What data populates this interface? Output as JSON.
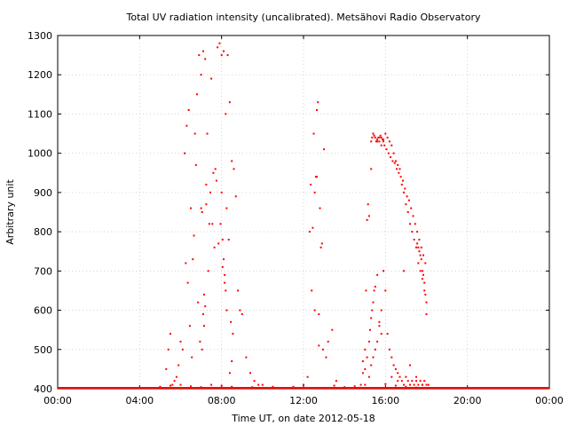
{
  "chart_data": {
    "type": "scatter",
    "title": "Total UV radiation intensity (uncalibrated). Metsähovi Radio Observatory",
    "xlabel": "Time UT, on date 2012-05-18",
    "ylabel": "Arbitrary unit",
    "x_unit": "hours UT",
    "xlim": [
      0,
      24
    ],
    "ylim": [
      400,
      1300
    ],
    "x_ticks": [
      {
        "value": 0,
        "label": "00:00"
      },
      {
        "value": 4,
        "label": "04:00"
      },
      {
        "value": 8,
        "label": "08:00"
      },
      {
        "value": 12,
        "label": "12:00"
      },
      {
        "value": 16,
        "label": "16:00"
      },
      {
        "value": 20,
        "label": "20:00"
      },
      {
        "value": 24,
        "label": "00:00"
      }
    ],
    "y_ticks": [
      400,
      500,
      600,
      700,
      800,
      900,
      1000,
      1100,
      1200,
      1300
    ],
    "grid": true,
    "marker_color": "#ff0000",
    "series": [
      {
        "x": [
          6.2,
          6.3,
          6.4,
          6.5,
          6.6,
          6.7,
          6.8,
          6.9,
          7.0,
          7.1,
          7.2,
          7.3,
          7.4,
          7.5,
          7.6,
          7.7,
          7.8,
          7.9,
          8.0,
          8.1,
          8.2,
          8.3,
          8.4,
          8.5,
          8.6,
          8.7,
          8.8,
          8.9,
          9.0,
          6.25,
          6.35,
          6.45,
          6.55,
          6.65,
          6.75,
          6.85,
          6.95,
          7.05,
          7.15,
          7.25,
          7.35,
          7.45,
          7.55,
          7.65,
          7.75,
          7.85,
          7.95,
          8.05,
          8.15,
          8.25,
          8.35,
          8.45,
          8.55,
          5.3,
          5.4,
          5.5,
          5.6,
          5.7,
          5.8,
          5.9,
          6.0,
          6.1,
          9.2,
          9.4,
          9.6,
          9.8,
          7.0,
          7.05,
          7.1,
          7.15,
          7.2,
          7.25,
          8.0,
          8.05,
          8.1,
          8.15,
          8.2,
          8.25,
          8.4,
          8.5,
          12.2,
          12.3,
          12.4,
          12.5,
          12.55,
          12.6,
          12.65,
          12.7,
          12.75,
          12.8,
          12.9,
          13.0,
          13.1,
          13.2,
          13.4,
          13.6,
          12.35,
          12.45,
          12.55,
          12.65,
          12.75,
          12.85,
          12.95,
          14.8,
          14.9,
          15.0,
          15.05,
          15.1,
          15.15,
          15.2,
          15.3,
          15.4,
          15.5,
          15.6,
          15.7,
          15.8,
          15.9,
          16.0,
          16.1,
          16.2,
          16.3,
          16.4,
          16.5,
          16.6,
          16.7,
          16.8,
          16.9,
          17.0,
          17.1,
          17.2,
          17.3,
          17.4,
          17.5,
          17.6,
          17.7,
          17.8,
          17.9,
          18.0,
          18.1,
          15.3,
          15.35,
          15.4,
          15.45,
          15.5,
          15.55,
          15.6,
          15.65,
          15.7,
          15.75,
          15.8,
          15.85,
          15.9,
          15.95,
          16.05,
          16.15,
          16.25,
          16.35,
          16.45,
          16.55,
          16.65,
          16.75,
          16.85,
          16.95,
          17.05,
          17.15,
          17.25,
          17.35,
          17.45,
          17.55,
          17.65,
          17.75,
          17.85,
          17.95,
          15.2,
          15.3,
          15.4,
          15.5,
          15.6,
          15.7,
          15.8,
          15.9,
          16.0,
          16.1,
          16.2,
          16.3,
          16.4,
          16.5,
          16.6,
          16.7,
          16.8,
          16.9,
          17.0,
          17.1,
          17.2,
          17.3,
          17.4,
          17.5,
          17.6,
          17.7,
          17.8,
          17.9,
          18.0,
          14.9,
          15.0,
          15.1,
          15.2,
          15.25,
          15.3,
          15.35,
          15.4,
          15.45,
          15.5,
          15.6,
          15.7,
          15.8,
          16.3,
          16.6,
          16.9,
          17.2,
          17.5,
          17.8,
          17.55,
          17.6,
          17.65,
          17.7,
          17.75,
          17.8,
          17.85,
          17.9,
          17.95,
          18.0,
          10.0,
          10.5,
          11.0,
          11.5,
          12.0,
          13.5,
          14.0,
          14.5,
          15.0,
          16.0,
          16.5,
          17.0,
          17.5,
          18.0,
          5.0,
          5.5,
          6.0,
          6.5,
          7.0,
          7.5,
          8.0,
          8.5,
          9.0,
          9.5
        ],
        "y": [
          1000,
          1070,
          1110,
          860,
          730,
          1050,
          1150,
          1250,
          1200,
          1260,
          1240,
          1050,
          820,
          1190,
          950,
          960,
          1270,
          1280,
          1250,
          1260,
          1100,
          1250,
          1130,
          980,
          960,
          890,
          650,
          600,
          590,
          720,
          670,
          560,
          480,
          790,
          970,
          620,
          520,
          850,
          640,
          870,
          700,
          900,
          820,
          760,
          930,
          770,
          820,
          710,
          690,
          860,
          780,
          570,
          540,
          450,
          500,
          540,
          410,
          420,
          430,
          460,
          520,
          500,
          480,
          440,
          420,
          410,
          860,
          500,
          590,
          560,
          610,
          920,
          900,
          780,
          730,
          670,
          650,
          600,
          440,
          470,
          430,
          800,
          650,
          1050,
          900,
          940,
          1110,
          1130,
          510,
          860,
          770,
          1010,
          480,
          520,
          550,
          420,
          920,
          810,
          600,
          940,
          590,
          760,
          500,
          410,
          470,
          500,
          650,
          830,
          870,
          840,
          960,
          1050,
          1040,
          1030,
          1040,
          1020,
          1035,
          1050,
          1040,
          1030,
          1020,
          1000,
          980,
          970,
          960,
          920,
          900,
          870,
          850,
          820,
          800,
          780,
          760,
          720,
          700,
          680,
          650,
          590,
          410,
          1030,
          1040,
          1050,
          1045,
          1040,
          1030,
          1035,
          1040,
          1030,
          1045,
          1040,
          1035,
          1030,
          1020,
          1010,
          1000,
          990,
          980,
          975,
          960,
          950,
          940,
          930,
          910,
          890,
          880,
          860,
          840,
          820,
          800,
          780,
          760,
          740,
          720,
          430,
          460,
          480,
          500,
          520,
          560,
          600,
          700,
          650,
          540,
          500,
          480,
          460,
          450,
          440,
          430,
          420,
          410,
          430,
          420,
          410,
          420,
          410,
          420,
          410,
          420,
          410,
          420,
          410,
          440,
          450,
          480,
          520,
          550,
          580,
          600,
          620,
          650,
          660,
          690,
          570,
          540,
          430,
          420,
          700,
          460,
          430,
          410,
          770,
          760,
          750,
          740,
          730,
          700,
          690,
          670,
          640,
          620,
          410,
          405,
          402,
          405,
          410,
          408,
          404,
          406,
          410,
          412,
          408,
          405,
          403,
          402,
          405,
          408,
          410,
          406,
          404,
          410,
          408,
          405,
          402,
          404
        ]
      }
    ]
  }
}
